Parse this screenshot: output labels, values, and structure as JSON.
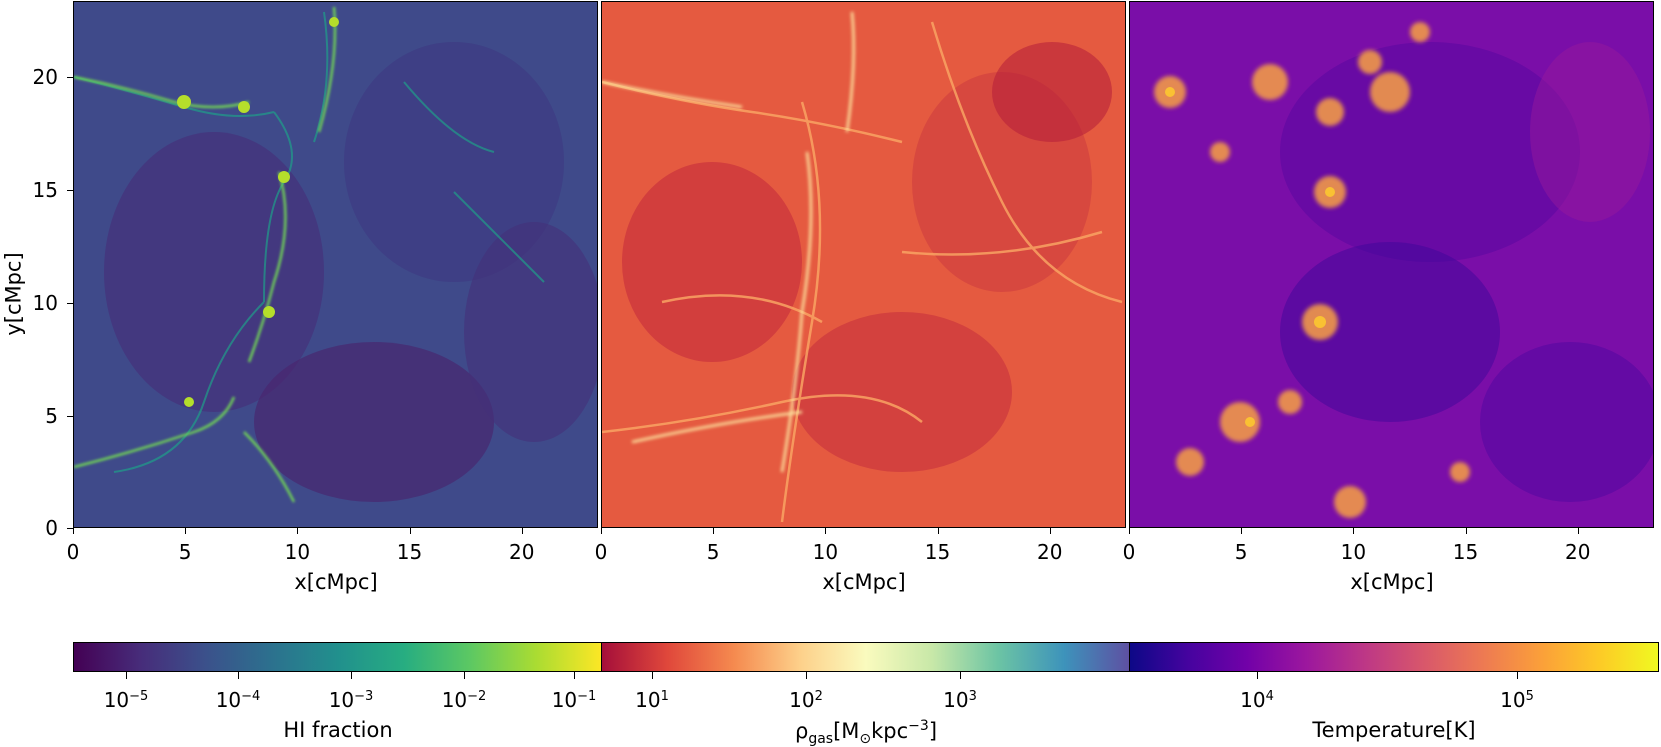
{
  "panels": [
    {
      "name": "hi-fraction-map",
      "colormap": "viridis"
    },
    {
      "name": "gas-density-map",
      "colormap": "Spectral"
    },
    {
      "name": "temperature-map",
      "colormap": "plasma"
    }
  ],
  "axes": {
    "xlabel": "x[cMpc]",
    "ylabel": "y[cMpc]",
    "x_ticks": [
      "0",
      "5",
      "10",
      "15",
      "20"
    ],
    "y_ticks": [
      "0",
      "5",
      "10",
      "15",
      "20"
    ],
    "range": [
      0,
      23.4
    ]
  },
  "colorbars": [
    {
      "label": "HI fraction",
      "ticks": [
        {
          "base": "10",
          "exp": "−5"
        },
        {
          "base": "10",
          "exp": "−4"
        },
        {
          "base": "10",
          "exp": "−3"
        },
        {
          "base": "10",
          "exp": "−2"
        },
        {
          "base": "10",
          "exp": "−1"
        }
      ]
    },
    {
      "label_html": "ρ<sub style=\"font-size:14px\">gas</sub>[M<sub style=\"font-size:14px\">⊙</sub>kpc<sup style=\"font-size:14px\">−3</sup>]",
      "ticks": [
        {
          "base": "10",
          "exp": "1"
        },
        {
          "base": "10",
          "exp": "2"
        },
        {
          "base": "10",
          "exp": "3"
        }
      ]
    },
    {
      "label": "Temperature[K]",
      "ticks": [
        {
          "base": "10",
          "exp": "4"
        },
        {
          "base": "10",
          "exp": "5"
        }
      ]
    }
  ]
}
